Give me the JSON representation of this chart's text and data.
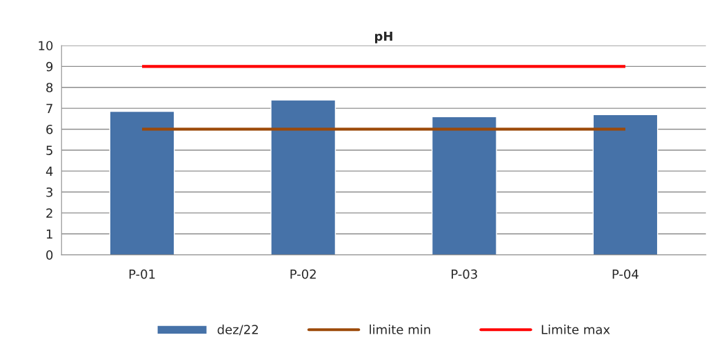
{
  "chart_data": {
    "type": "bar",
    "title": "pH",
    "categories": [
      "P-01",
      "P-02",
      "P-03",
      "P-04"
    ],
    "series": [
      {
        "name": "dez/22",
        "color": "#4672a8",
        "values": [
          6.85,
          7.4,
          6.6,
          6.7
        ]
      },
      {
        "name": "limite min",
        "type": "line",
        "color": "#9c4a0a",
        "values": [
          6,
          6,
          6,
          6
        ]
      },
      {
        "name": "Limite max",
        "type": "line",
        "color": "#ff0000",
        "values": [
          9,
          9,
          9,
          9
        ]
      }
    ],
    "ylim": [
      0,
      10
    ],
    "yticks": [
      0,
      1,
      2,
      3,
      4,
      5,
      6,
      7,
      8,
      9,
      10
    ],
    "grid": "y",
    "legend": "bottom"
  }
}
